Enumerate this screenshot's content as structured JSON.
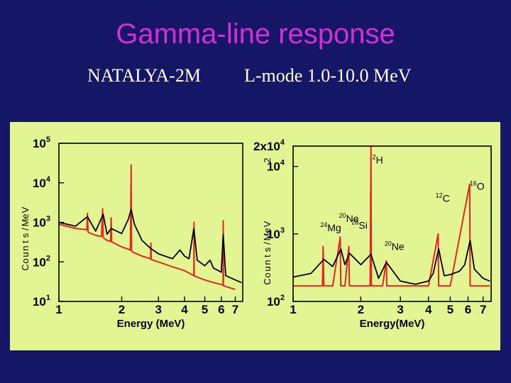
{
  "slide": {
    "title": "Gamma-line response",
    "subtitle_left": "NATALYA-2M",
    "subtitle_right": "L-mode 1.0-10.0 MeV"
  },
  "colors": {
    "background": "#151665",
    "title": "#d22fd8",
    "panel": "#e3f592",
    "red_series": "#e8261f",
    "black_series": "#000000"
  },
  "chart_data": [
    {
      "type": "line",
      "scale": {
        "x": "log",
        "y": "log"
      },
      "xlabel": "Energy (MeV)",
      "ylabel": "C o u n t s / M e V",
      "xlim": [
        1,
        7.6
      ],
      "ylim": [
        10,
        100000
      ],
      "x_ticks": [
        1,
        2,
        3,
        4,
        5,
        6,
        7
      ],
      "y_ticks": [
        {
          "value": 10,
          "label": "10",
          "exp": "1"
        },
        {
          "value": 100,
          "label": "10",
          "exp": "2"
        },
        {
          "value": 1000,
          "label": "10",
          "exp": "3"
        },
        {
          "value": 10000,
          "label": "10",
          "exp": "4"
        },
        {
          "value": 100000,
          "label": "10",
          "exp": "5"
        }
      ],
      "series": [
        {
          "color": "red",
          "x": [
            1.0,
            1.2,
            1.36,
            1.37,
            1.38,
            1.5,
            1.6,
            1.62,
            1.63,
            1.64,
            1.7,
            1.77,
            1.78,
            1.79,
            2.0,
            2.2,
            2.22,
            2.23,
            2.24,
            2.5,
            2.75,
            2.76,
            2.77,
            3.0,
            3.5,
            4.0,
            4.43,
            4.44,
            4.45,
            5.0,
            5.5,
            6.12,
            6.13,
            6.14,
            7.0
          ],
          "y": [
            900,
            700,
            650,
            1700,
            560,
            470,
            440,
            2200,
            420,
            400,
            350,
            330,
            1300,
            320,
            240,
            200,
            28000,
            190,
            180,
            140,
            120,
            300,
            115,
            100,
            75,
            60,
            45,
            1000,
            44,
            35,
            30,
            26,
            1100,
            25,
            20
          ]
        },
        {
          "color": "black",
          "x": [
            1.0,
            1.2,
            1.37,
            1.5,
            1.63,
            1.7,
            1.78,
            2.0,
            2.15,
            2.22,
            2.3,
            2.5,
            2.75,
            3.0,
            3.5,
            3.8,
            4.0,
            4.2,
            4.43,
            4.6,
            5.0,
            5.3,
            5.5,
            6.0,
            6.13,
            6.3,
            7.0,
            7.5
          ],
          "y": [
            1000,
            800,
            1400,
            600,
            1600,
            500,
            700,
            520,
            1200,
            2100,
            900,
            350,
            220,
            160,
            120,
            200,
            140,
            120,
            700,
            110,
            80,
            110,
            70,
            55,
            500,
            45,
            35,
            30
          ]
        }
      ]
    },
    {
      "type": "line",
      "scale": {
        "x": "log",
        "y": "log"
      },
      "xlabel": "Energy(MeV)",
      "ylabel": "C o u n t s / M e V",
      "ylabel_top": "2",
      "xlim": [
        1,
        7.6
      ],
      "ylim": [
        100,
        20000
      ],
      "x_ticks": [
        1,
        2,
        3,
        4,
        5,
        6,
        7
      ],
      "y_ticks": [
        {
          "value": 100,
          "label": "10",
          "exp": "2"
        },
        {
          "value": 1000,
          "label": "10",
          "exp": "3"
        },
        {
          "value": 10000,
          "label": "10",
          "exp": "4"
        },
        {
          "value": 20000,
          "label": "2x10",
          "exp": "4"
        }
      ],
      "annotations": [
        {
          "mass": "2",
          "symbol": "H",
          "x": 2.25,
          "y": 11000
        },
        {
          "mass": "16",
          "symbol": "O",
          "x": 6.1,
          "y": 4500
        },
        {
          "mass": "12",
          "symbol": "C",
          "x": 4.3,
          "y": 3000
        },
        {
          "mass": "20",
          "symbol": "Ne",
          "x": 1.6,
          "y": 1500
        },
        {
          "mass": "28",
          "symbol": "Si",
          "x": 1.82,
          "y": 1200
        },
        {
          "mass": "24",
          "symbol": "Mg",
          "x": 1.32,
          "y": 1100
        },
        {
          "mass": "20",
          "symbol": "Ne",
          "x": 2.55,
          "y": 580
        }
      ],
      "series": [
        {
          "color": "red",
          "x": [
            1.0,
            1.35,
            1.36,
            1.37,
            1.38,
            1.5,
            1.62,
            1.63,
            1.64,
            1.7,
            1.77,
            1.78,
            1.79,
            2.0,
            2.2,
            2.22,
            2.23,
            2.24,
            2.5,
            2.6,
            2.61,
            2.62,
            3.0,
            4.0,
            4.42,
            4.44,
            4.46,
            5.0,
            6.1,
            6.13,
            6.16,
            7.0,
            7.5
          ],
          "y": [
            170,
            170,
            650,
            170,
            170,
            170,
            900,
            170,
            170,
            170,
            650,
            170,
            170,
            170,
            170,
            20000,
            170,
            170,
            170,
            400,
            170,
            170,
            170,
            170,
            1000,
            170,
            170,
            170,
            5500,
            170,
            170,
            170,
            170
          ]
        },
        {
          "color": "black",
          "x": [
            1.0,
            1.2,
            1.37,
            1.5,
            1.63,
            1.7,
            1.78,
            2.0,
            2.22,
            2.4,
            2.6,
            3.0,
            3.5,
            4.0,
            4.2,
            4.44,
            4.7,
            5.0,
            5.5,
            5.8,
            6.13,
            6.4,
            7.0,
            7.5
          ],
          "y": [
            230,
            260,
            420,
            330,
            600,
            350,
            520,
            350,
            500,
            220,
            380,
            200,
            180,
            200,
            260,
            600,
            240,
            250,
            280,
            350,
            800,
            300,
            220,
            200
          ]
        }
      ]
    }
  ]
}
